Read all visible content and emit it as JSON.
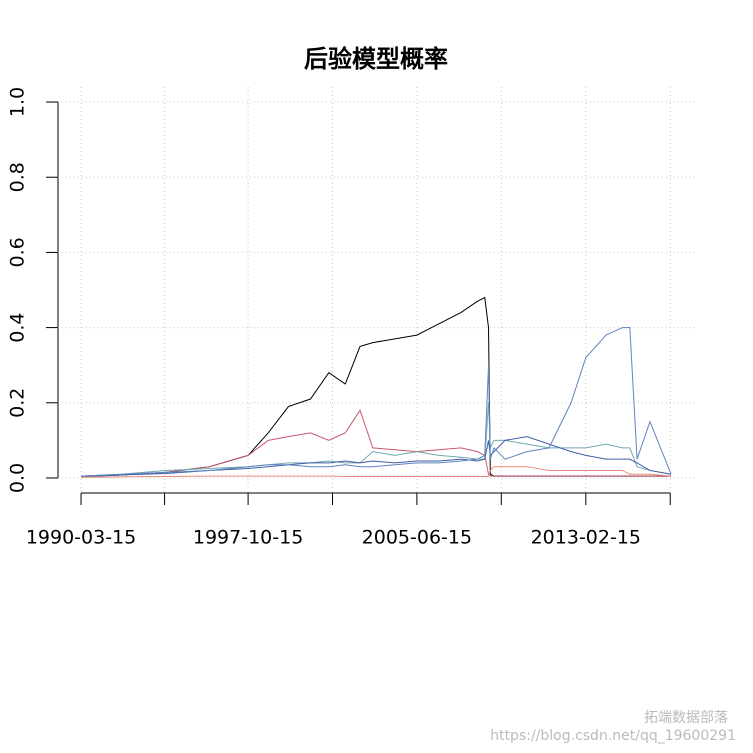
{
  "chart_data": {
    "type": "line",
    "title": "后验模型概率",
    "x": [
      "1990-03-15",
      "1992-01-15",
      "1994-01-15",
      "1996-01-15",
      "1997-10-15",
      "1998-09-15",
      "1999-08-15",
      "2000-08-15",
      "2001-06-15",
      "2002-03-15",
      "2002-11-15",
      "2003-06-15",
      "2004-06-15",
      "2005-06-15",
      "2006-06-15",
      "2007-06-15",
      "2008-03-15",
      "2008-07-15",
      "2008-09-15",
      "2008-10-15",
      "2008-12-15",
      "2009-06-15",
      "2010-06-15",
      "2011-06-15",
      "2012-06-15",
      "2013-02-15",
      "2014-01-15",
      "2014-10-15",
      "2015-02-15",
      "2015-06-15",
      "2016-01-15",
      "2016-12-30"
    ],
    "series": [
      {
        "color": "#000000",
        "values": [
          0.005,
          0.008,
          0.015,
          0.03,
          0.06,
          0.12,
          0.19,
          0.21,
          0.28,
          0.25,
          0.35,
          0.36,
          0.37,
          0.38,
          0.41,
          0.44,
          0.47,
          0.48,
          0.4,
          0.01,
          0.005,
          0.005,
          0.005,
          0.005,
          0.005,
          0.005,
          0.005,
          0.005,
          0.005,
          0.005,
          0.005,
          0.005
        ]
      },
      {
        "color": "#c8566b",
        "values": [
          0.005,
          0.008,
          0.015,
          0.03,
          0.06,
          0.1,
          0.11,
          0.12,
          0.1,
          0.12,
          0.18,
          0.08,
          0.075,
          0.07,
          0.075,
          0.08,
          0.07,
          0.06,
          0.01,
          0.005,
          0.005,
          0.005,
          0.005,
          0.005,
          0.005,
          0.005,
          0.005,
          0.005,
          0.005,
          0.005,
          0.005,
          0.005
        ]
      },
      {
        "color": "#6fa9b0",
        "values": [
          0.005,
          0.01,
          0.02,
          0.025,
          0.03,
          0.035,
          0.04,
          0.04,
          0.045,
          0.04,
          0.04,
          0.07,
          0.06,
          0.07,
          0.06,
          0.055,
          0.05,
          0.05,
          0.2,
          0.08,
          0.1,
          0.1,
          0.09,
          0.08,
          0.08,
          0.08,
          0.09,
          0.08,
          0.08,
          0.03,
          0.02,
          0.01
        ]
      },
      {
        "color": "#3f5fa8",
        "values": [
          0.003,
          0.008,
          0.012,
          0.02,
          0.025,
          0.03,
          0.035,
          0.04,
          0.04,
          0.045,
          0.04,
          0.045,
          0.04,
          0.045,
          0.045,
          0.05,
          0.045,
          0.05,
          0.1,
          0.06,
          0.07,
          0.1,
          0.11,
          0.09,
          0.07,
          0.06,
          0.05,
          0.05,
          0.05,
          0.04,
          0.02,
          0.01
        ]
      },
      {
        "color": "#e98a7a",
        "values": [
          0.002,
          0.003,
          0.004,
          0.005,
          0.005,
          0.005,
          0.005,
          0.005,
          0.005,
          0.004,
          0.004,
          0.004,
          0.004,
          0.004,
          0.004,
          0.004,
          0.004,
          0.004,
          0.004,
          0.02,
          0.03,
          0.03,
          0.03,
          0.02,
          0.02,
          0.02,
          0.02,
          0.02,
          0.01,
          0.01,
          0.01,
          0.005
        ]
      },
      {
        "color": "#5f84c0",
        "values": [
          0.005,
          0.01,
          0.015,
          0.02,
          0.03,
          0.035,
          0.035,
          0.03,
          0.03,
          0.035,
          0.03,
          0.03,
          0.035,
          0.04,
          0.04,
          0.045,
          0.05,
          0.06,
          0.3,
          0.05,
          0.08,
          0.05,
          0.07,
          0.08,
          0.2,
          0.32,
          0.38,
          0.4,
          0.4,
          0.05,
          0.15,
          0.01
        ]
      }
    ],
    "xlim": [
      "1989-02-26",
      "2018-01-31"
    ],
    "xticks": [
      "1990-03-15",
      {
        "value": "1993-12-30",
        "label": null
      },
      "1997-10-15",
      {
        "value": "2001-08-15",
        "label": null
      },
      "2005-06-15",
      {
        "value": "2009-04-15",
        "label": null
      },
      "2013-02-15",
      {
        "value": "2016-12-16",
        "label": null
      }
    ],
    "ylim": [
      -0.04,
      1.04
    ],
    "yticks": [
      {
        "value": 0,
        "label": "0.0"
      },
      0.2,
      0.4,
      0.6,
      0.8,
      {
        "value": 1,
        "label": "1.0"
      }
    ],
    "grid": true
  },
  "watermark": {
    "brand": "拓端数据部落",
    "url": "https://blog.csdn.net/qq_19600291"
  }
}
